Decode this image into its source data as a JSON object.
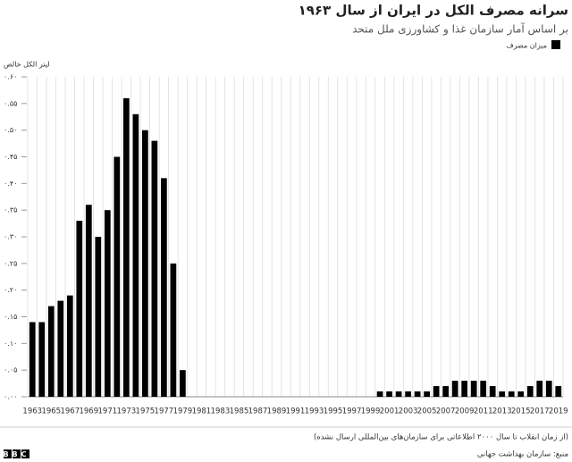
{
  "chart_data": {
    "type": "bar",
    "title": "سرانه مصرف الکل در ایران از سال ۱۹۶۳",
    "subtitle": "بر اساس آمار سازمان غذا و کشاورزی ملل متحد",
    "y_label": "لیتر الکل خالص",
    "categories": [
      "1963",
      null,
      "1965",
      null,
      "1967",
      null,
      "1969",
      null,
      "1971",
      null,
      "1973",
      null,
      "1975",
      null,
      "1977",
      null,
      "1979",
      null,
      "1981",
      null,
      "1983",
      null,
      "1985",
      null,
      "1987",
      null,
      "1989",
      null,
      "1991",
      null,
      "1993",
      null,
      "1995",
      null,
      "1997",
      null,
      "1999",
      null,
      "2001",
      null,
      "2003",
      null,
      "2005",
      null,
      "2007",
      null,
      "2009",
      null,
      "2011",
      null,
      "2013",
      null,
      "2015",
      null,
      "2017",
      null,
      "2019"
    ],
    "series": [
      {
        "name": "میزان مصرف",
        "color": "#000000",
        "values": [
          0.14,
          0.14,
          0.17,
          0.18,
          0.19,
          0.33,
          0.36,
          0.3,
          0.35,
          0.45,
          0.56,
          0.53,
          0.5,
          0.48,
          0.41,
          0.25,
          0.05,
          null,
          null,
          null,
          null,
          null,
          null,
          null,
          null,
          null,
          null,
          null,
          null,
          null,
          null,
          null,
          null,
          null,
          null,
          null,
          null,
          0.01,
          0.01,
          0.01,
          0.01,
          0.01,
          0.01,
          0.02,
          0.02,
          0.03,
          0.03,
          0.03,
          0.03,
          0.02,
          0.01,
          0.01,
          0.01,
          0.02,
          0.03,
          0.03,
          0.02
        ]
      }
    ],
    "ylim": [
      0,
      0.6
    ],
    "yticks": [
      {
        "value": 0,
        "label": "۰.۰۰"
      },
      {
        "value": 0.05,
        "label": "۰.۰۵"
      },
      {
        "value": 0.1,
        "label": "۰.۱۰"
      },
      {
        "value": 0.15,
        "label": "۰.۱۵"
      },
      {
        "value": 0.2,
        "label": "۰.۲۰"
      },
      {
        "value": 0.25,
        "label": "۰.۲۵"
      },
      {
        "value": 0.3,
        "label": "۰.۳۰"
      },
      {
        "value": 0.35,
        "label": "۰.۳۵"
      },
      {
        "value": 0.4,
        "label": "۰.۴۰"
      },
      {
        "value": 0.45,
        "label": "۰.۴۵"
      },
      {
        "value": 0.5,
        "label": "۰.۵۰"
      },
      {
        "value": 0.55,
        "label": "۰.۵۵"
      },
      {
        "value": 0.6,
        "label": "۰.۶۰"
      }
    ]
  },
  "footer": {
    "note": "(از زمان انقلاب تا سال ۲۰۰۰ اطلاعاتی برای سازمان‌های بین‌المللی ارسال نشده)",
    "source": "منبع: سازمان بهداشت جهانی",
    "logo": "BBC"
  }
}
